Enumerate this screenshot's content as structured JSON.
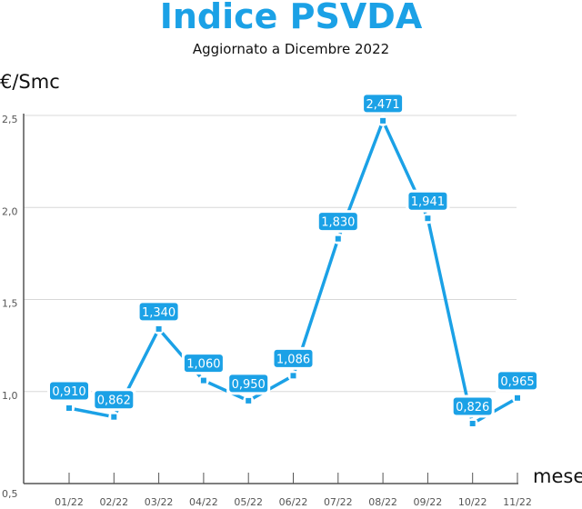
{
  "chart_data": {
    "type": "line",
    "title": "Indice PSVDA",
    "subtitle": "Aggiornato a Dicembre 2022",
    "ylabel": "€/Smc",
    "xlabel": "mese",
    "categories": [
      "01/22",
      "02/22",
      "03/22",
      "04/22",
      "05/22",
      "06/22",
      "07/22",
      "08/22",
      "09/22",
      "10/22",
      "11/22"
    ],
    "values": [
      0.91,
      0.862,
      1.34,
      1.06,
      0.95,
      1.086,
      1.83,
      2.471,
      1.941,
      0.826,
      0.965
    ],
    "data_labels": [
      "0,910",
      "0,862",
      "1,340",
      "1,060",
      "0,950",
      "1,086",
      "1,830",
      "2,471",
      "1,941",
      "0,826",
      "0,965"
    ],
    "yticks": [
      0.5,
      1.0,
      1.5,
      2.0,
      2.5
    ],
    "ytick_labels": [
      "0,5",
      "1,0",
      "1,5",
      "2,0",
      "2,5"
    ],
    "ylim": [
      0.5,
      2.5
    ],
    "grid": true,
    "colors": {
      "series": "#1ba1e6",
      "title": "#1ba1e6",
      "grid": "#d8d8d8",
      "axis": "#555555"
    }
  }
}
